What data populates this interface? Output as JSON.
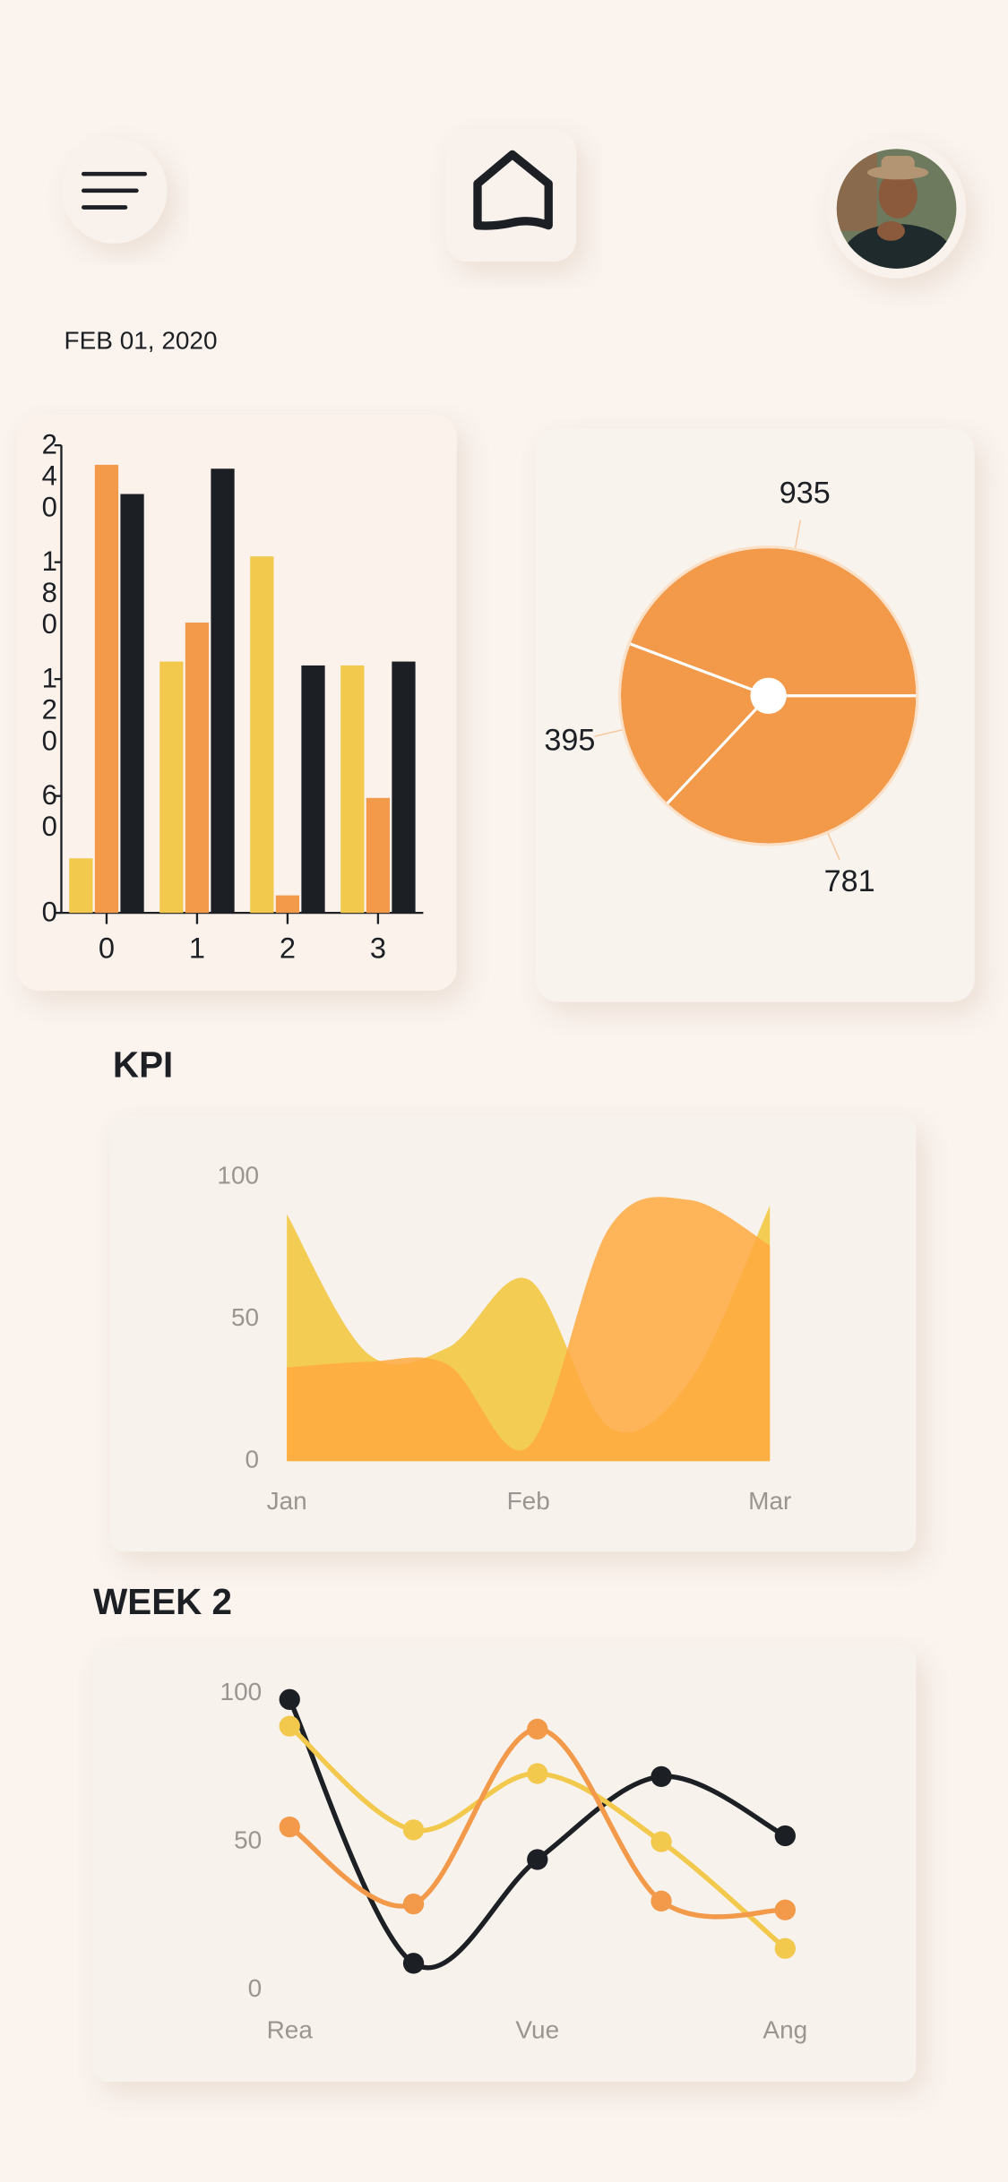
{
  "date": "FEB 01, 2020",
  "chart_data": [
    {
      "type": "bar",
      "categories": [
        "0",
        "1",
        "2",
        "3"
      ],
      "series": [
        {
          "color": "#f2c94c",
          "values": [
            28,
            129,
            183,
            127
          ]
        },
        {
          "color": "#f2994a",
          "values": [
            230,
            149,
            9,
            59
          ]
        },
        {
          "color": "#1c1f24",
          "values": [
            215,
            228,
            127,
            129
          ]
        }
      ],
      "ylim": [
        0,
        240
      ],
      "yticks": [
        0,
        60,
        120,
        180,
        240
      ]
    },
    {
      "type": "pie",
      "values": [
        935,
        395,
        781
      ],
      "color": "#f2994a"
    },
    {
      "type": "area",
      "title": "KPI",
      "categories": [
        "Jan",
        null,
        null,
        "Feb",
        null,
        null,
        "Mar"
      ],
      "series": [
        {
          "color": "#f2c94c",
          "values": [
            87,
            38,
            40,
            64,
            12,
            28,
            90
          ]
        },
        {
          "color": "#ffa940",
          "values": [
            33,
            35,
            34,
            5,
            82,
            92,
            76
          ]
        }
      ],
      "ylim": [
        0,
        100
      ],
      "yticks": [
        0,
        50,
        100
      ]
    },
    {
      "type": "line",
      "title": "WEEK 2",
      "categories": [
        "Rea",
        null,
        "Vue",
        null,
        "Ang"
      ],
      "series": [
        {
          "color": "#1c1f24",
          "values": [
            98,
            9,
            44,
            72,
            52
          ]
        },
        {
          "color": "#f2c94c",
          "values": [
            89,
            54,
            73,
            50,
            14
          ]
        },
        {
          "color": "#f2994a",
          "values": [
            55,
            29,
            88,
            30,
            27
          ]
        }
      ],
      "ylim": [
        0,
        100
      ],
      "yticks": [
        0,
        50,
        100
      ]
    }
  ]
}
